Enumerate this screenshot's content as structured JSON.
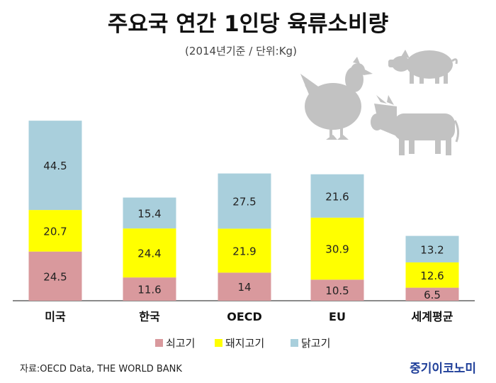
{
  "chart_data": {
    "type": "bar",
    "stacked": true,
    "title": "주요국 연간 1인당 육류소비량",
    "subtitle": "(2014년기준 / 단위:Kg)",
    "categories": [
      "미국",
      "한국",
      "OECD",
      "EU",
      "세계평균"
    ],
    "series": [
      {
        "name": "쇠고기",
        "color": "#d9999d",
        "values": [
          24.5,
          11.6,
          14,
          10.5,
          6.5
        ]
      },
      {
        "name": "돼지고기",
        "color": "#ffff00",
        "values": [
          20.7,
          24.4,
          21.9,
          30.9,
          12.6
        ]
      },
      {
        "name": "닭고기",
        "color": "#a9cfdc",
        "values": [
          44.5,
          15.4,
          27.5,
          21.6,
          13.2
        ]
      }
    ],
    "value_labels": [
      [
        "24.5",
        "11.6",
        "14",
        "10.5",
        "6.5"
      ],
      [
        "20.7",
        "24.4",
        "21.9",
        "30.9",
        "12.6"
      ],
      [
        "44.5",
        "15.4",
        "27.5",
        "21.6",
        "13.2"
      ]
    ],
    "legend_position": "bottom",
    "grid": false
  },
  "source": "자료:OECD Data, THE WORLD BANK",
  "brand": "중기이코노미",
  "icons": [
    "pig-icon",
    "chicken-icon",
    "cow-icon"
  ]
}
